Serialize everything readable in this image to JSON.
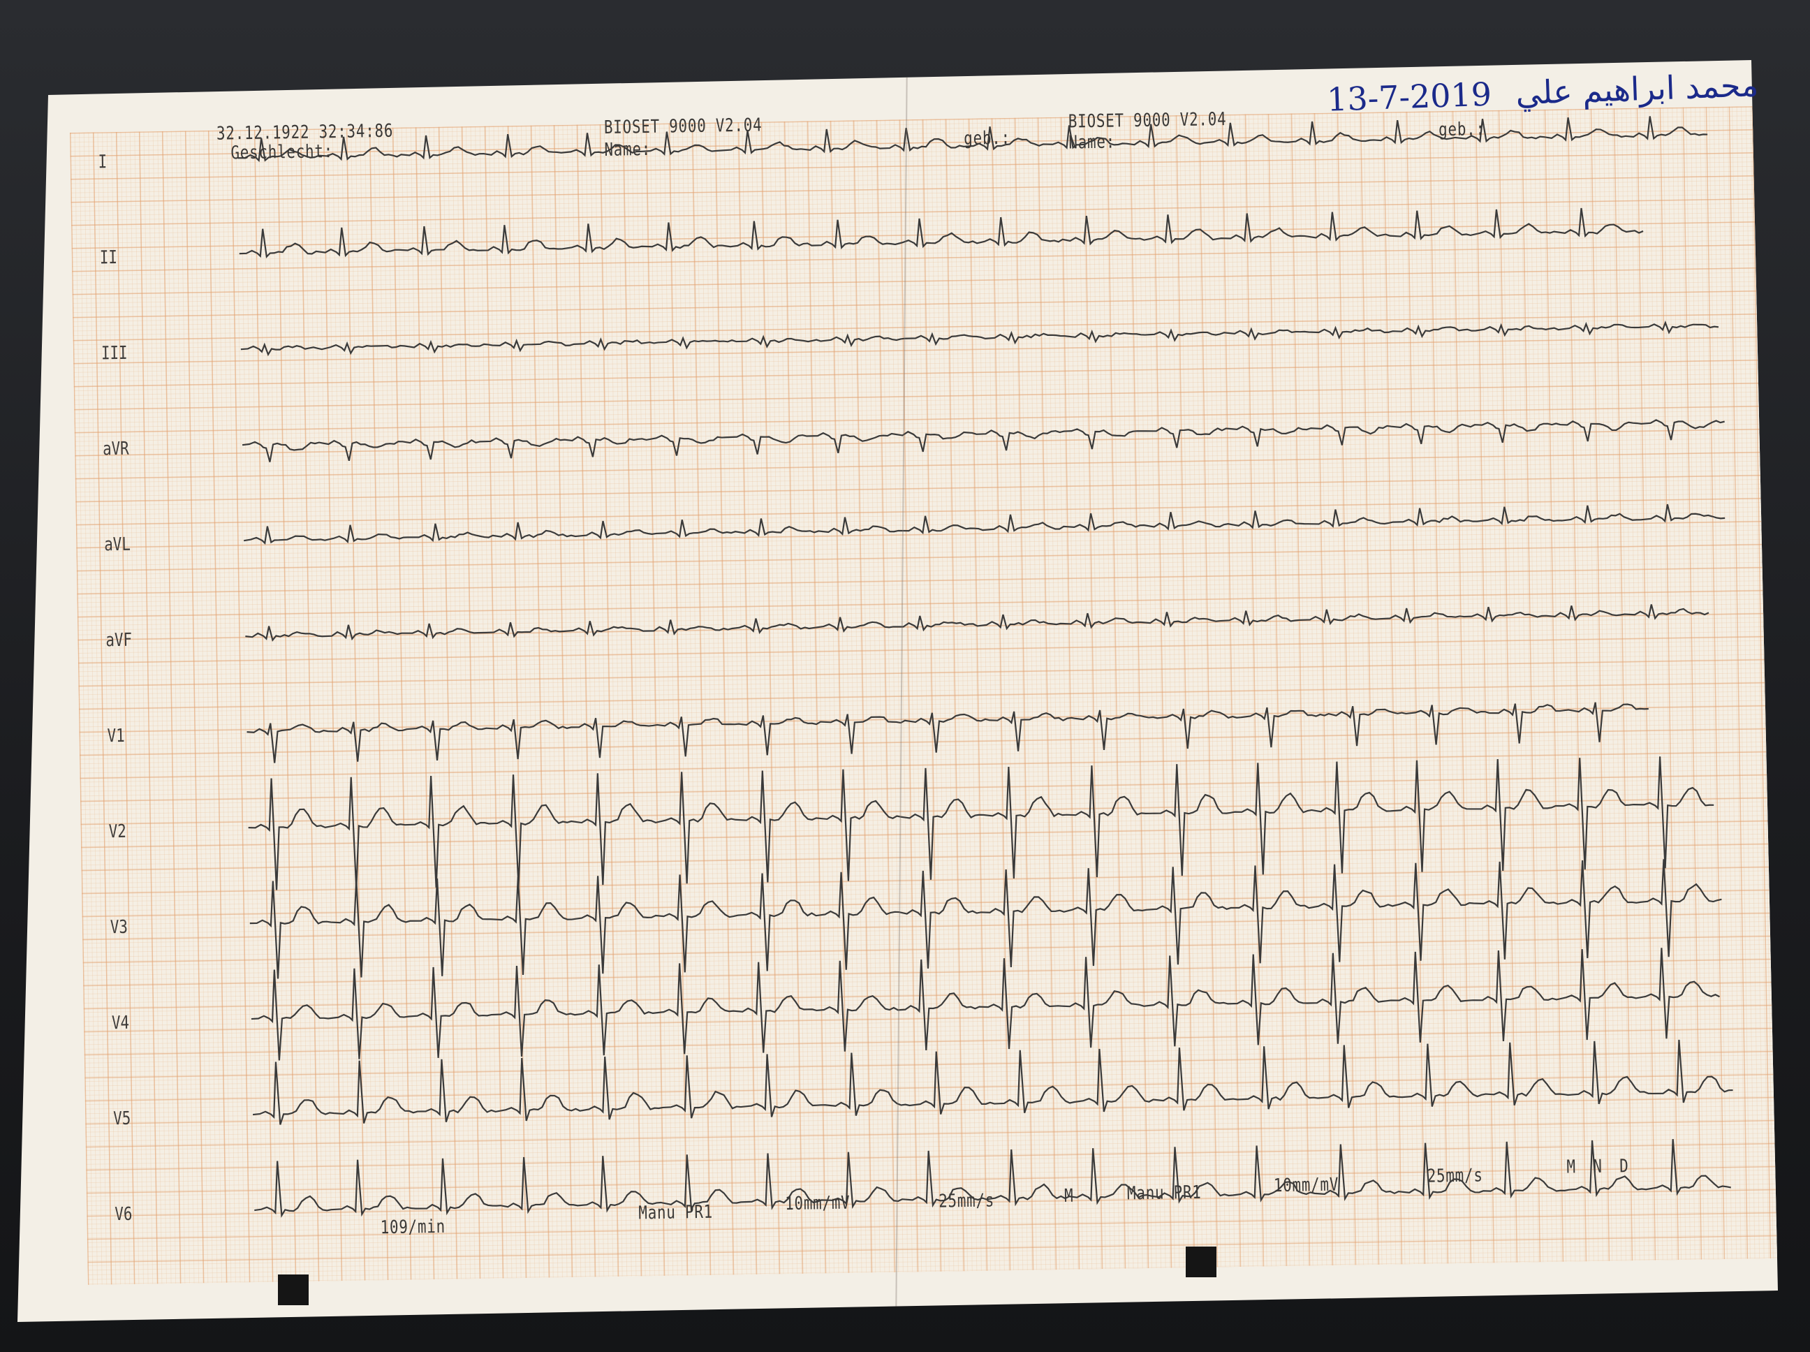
{
  "header_left": {
    "datetime": "32.12.1922 32:34:86",
    "sex_label": "Geschlecht:"
  },
  "header_center_left": {
    "device": "BIOSET 9000 V2.04",
    "name_label": "Name:",
    "birth_label": "geb.:"
  },
  "header_center_right": {
    "device": "BIOSET 9000 V2.04",
    "name_label": "Name:",
    "birth_label": "geb.:"
  },
  "handwritten_note": {
    "date": "13-7-2019",
    "name": "محمد ابراهيم علي"
  },
  "leads": [
    "I",
    "II",
    "III",
    "aVR",
    "aVL",
    "aVF",
    "V1",
    "V2",
    "V3",
    "V4",
    "V5",
    "V6"
  ],
  "footer": {
    "heart_rate": "109/min",
    "mode_1": "Manu PR1",
    "gain_1": "10mm/mV",
    "speed_1": "25mm/s",
    "marker": "M",
    "mode_2": "Manu PR1",
    "gain_2": "10mm/mV",
    "speed_2": "25mm/s",
    "filters": "M N D"
  },
  "colors": {
    "paper": "#f3efe6",
    "grid": "#e2a06e",
    "trace": "#3a3a3a",
    "ink": "#1b2a8a",
    "background": "#1d1f22"
  }
}
